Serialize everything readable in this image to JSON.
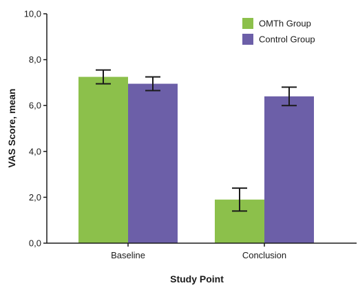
{
  "chart_data": {
    "type": "bar",
    "categories": [
      "Baseline",
      "Conclusion"
    ],
    "series": [
      {
        "name": "OMTh Group",
        "color": "#8cc04b",
        "values": [
          7.25,
          1.9
        ],
        "errors": [
          0.3,
          0.5
        ]
      },
      {
        "name": "Control Group",
        "color": "#6c5fa8",
        "values": [
          6.95,
          6.4
        ],
        "errors": [
          0.3,
          0.4
        ]
      }
    ],
    "ylim": [
      0,
      10
    ],
    "yticks": [
      0,
      2,
      4,
      6,
      8,
      10
    ],
    "ytick_labels": [
      "0,0",
      "2,0",
      "4,0",
      "6,0",
      "8,0",
      "10,0"
    ],
    "xlabel": "Study Point",
    "ylabel": "VAS Score, mean",
    "grid": false,
    "legend": "top-right",
    "error_bar_color": "#1a1a1a",
    "axis_color": "#1a1a1a"
  }
}
